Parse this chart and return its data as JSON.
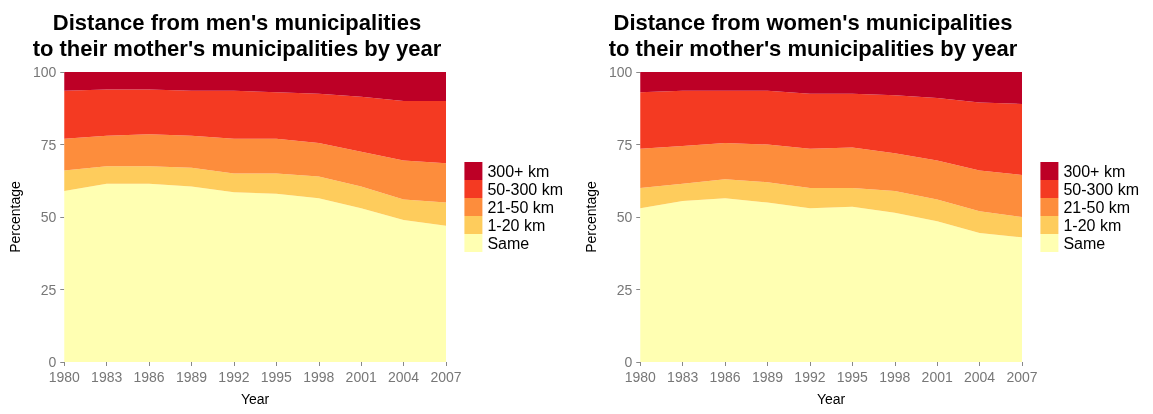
{
  "chart_data": [
    {
      "type": "area",
      "stacked": true,
      "title": "Distance from men's municipalities\nto their mother's municipalities by year",
      "xlabel": "Year",
      "ylabel": "Percentage",
      "x": [
        1980,
        1983,
        1986,
        1989,
        1992,
        1995,
        1998,
        2001,
        2004,
        2007
      ],
      "series": [
        {
          "name": "Same",
          "color": "#ffffb2",
          "values": [
            59,
            61.5,
            61.5,
            60.5,
            58.5,
            58,
            56.5,
            53,
            49,
            47
          ]
        },
        {
          "name": "1-20 km",
          "color": "#fecc5c",
          "values": [
            7,
            6,
            6,
            6.5,
            6.5,
            7,
            7.5,
            7.5,
            7,
            8
          ]
        },
        {
          "name": "21-50 km",
          "color": "#fd8d3c",
          "values": [
            11,
            10.5,
            11,
            11,
            12,
            12,
            11.5,
            12,
            13.5,
            13.5
          ]
        },
        {
          "name": "50-300 km",
          "color": "#f43a22",
          "values": [
            16.5,
            16,
            15.5,
            15.5,
            16.5,
            16,
            17,
            19,
            20.5,
            21.5
          ]
        },
        {
          "name": "300+ km",
          "color": "#bd0026",
          "values": [
            6.5,
            6,
            6,
            6.5,
            6.5,
            7,
            7.5,
            8.5,
            10,
            10
          ]
        }
      ],
      "xlim": [
        1980,
        2007
      ],
      "xticks": [
        1980,
        1983,
        1986,
        1989,
        1992,
        1995,
        1998,
        2001,
        2004,
        2007
      ],
      "ylim": [
        0,
        100
      ],
      "yticks": [
        0,
        25,
        50,
        75,
        100
      ],
      "legend": "right"
    },
    {
      "type": "area",
      "stacked": true,
      "title": "Distance from women's municipalities\nto their mother's municipalities by year",
      "xlabel": "Year",
      "ylabel": "Percentage",
      "x": [
        1980,
        1983,
        1986,
        1989,
        1992,
        1995,
        1998,
        2001,
        2004,
        2007
      ],
      "series": [
        {
          "name": "Same",
          "color": "#ffffb2",
          "values": [
            53,
            55.5,
            56.5,
            55,
            53,
            53.5,
            51.5,
            48.5,
            44.5,
            43
          ]
        },
        {
          "name": "1-20 km",
          "color": "#fecc5c",
          "values": [
            7,
            6,
            6.5,
            7,
            7,
            6.5,
            7.5,
            7.5,
            7.5,
            7
          ]
        },
        {
          "name": "21-50 km",
          "color": "#fd8d3c",
          "values": [
            13.5,
            13,
            12.5,
            13,
            13.5,
            14,
            13,
            13.5,
            14,
            14.5
          ]
        },
        {
          "name": "50-300 km",
          "color": "#f43a22",
          "values": [
            19.5,
            19,
            18,
            18.5,
            19,
            18.5,
            20,
            21.5,
            23.5,
            24.5
          ]
        },
        {
          "name": "300+ km",
          "color": "#bd0026",
          "values": [
            7,
            6.5,
            6.5,
            6.5,
            7.5,
            7.5,
            8,
            9,
            10.5,
            11
          ]
        }
      ],
      "xlim": [
        1980,
        2007
      ],
      "xticks": [
        1980,
        1983,
        1986,
        1989,
        1992,
        1995,
        1998,
        2001,
        2004,
        2007
      ],
      "ylim": [
        0,
        100
      ],
      "yticks": [
        0,
        25,
        50,
        75,
        100
      ],
      "legend": "right"
    }
  ]
}
